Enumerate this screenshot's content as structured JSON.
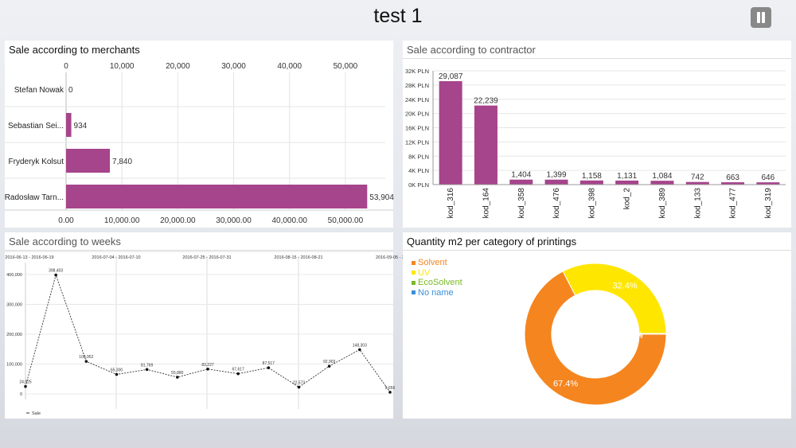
{
  "app": {
    "title": "test 1"
  },
  "merchants": {
    "title": "Sale according to merchants",
    "chart_data": {
      "type": "bar",
      "orientation": "horizontal",
      "categories": [
        "Stefan Nowak",
        "Sebastian Sei...",
        "Fryderyk Kolsut",
        "Radosław Tarn..."
      ],
      "values": [
        0,
        934,
        7840,
        53904
      ],
      "data_labels": [
        "0",
        "934",
        "7,840",
        "53,904"
      ],
      "xlim": [
        0,
        55000
      ],
      "top_ticks": [
        "0",
        "10,000",
        "20,000",
        "30,000",
        "40,000",
        "50,000"
      ],
      "bottom_ticks": [
        "0.00",
        "10,000.00",
        "20,000.00",
        "30,000.00",
        "40,000.00",
        "50,000.00"
      ],
      "tick_values": [
        0,
        10000,
        20000,
        30000,
        40000,
        50000
      ],
      "color": "#a6448c",
      "grid": true
    }
  },
  "contractor": {
    "title": "Sale according to contractor",
    "chart_data": {
      "type": "bar",
      "categories": [
        "kod_316",
        "kod_164",
        "kod_358",
        "kod_476",
        "kod_398",
        "kod_2",
        "kod_389",
        "kod_133",
        "kod_477",
        "kod_319"
      ],
      "values": [
        29087,
        22239,
        1404,
        1399,
        1158,
        1131,
        1084,
        742,
        663,
        646
      ],
      "data_labels": [
        "29,087",
        "22,239",
        "1,404",
        "1,399",
        "1,158",
        "1,131",
        "1,084",
        "742",
        "663",
        "646"
      ],
      "ylim": [
        0,
        32000
      ],
      "y_ticks": [
        "0K PLN",
        "4K PLN",
        "8K PLN",
        "12K PLN",
        "16K PLN",
        "20K PLN",
        "24K PLN",
        "28K PLN",
        "32K PLN"
      ],
      "y_tick_values": [
        0,
        4000,
        8000,
        12000,
        16000,
        20000,
        24000,
        28000,
        32000
      ],
      "color": "#a6448c",
      "grid": true
    }
  },
  "weeks": {
    "title": "Sale according to weeks",
    "chart_data": {
      "type": "line",
      "top_labels": [
        "2016-06-13 - 2016-06-19",
        "2016-07-04 - 2016-07-10",
        "2016-07-25 - 2016-07-31",
        "2016-08-15 - 2016-08-21",
        "2016-09-05 - 2"
      ],
      "values": [
        24925,
        398403,
        108952,
        65300,
        81769,
        55880,
        83227,
        67617,
        87517,
        22573,
        92903,
        148303,
        5656
      ],
      "data_labels": [
        "24,925",
        "398,403",
        "108,952",
        "65,300",
        "81,769",
        "55,880",
        "83,227",
        "67,617",
        "87,517",
        "22,573",
        "92,903",
        "148,303",
        "5,656"
      ],
      "ylim": [
        0,
        420000
      ],
      "y_ticks": [
        "0",
        "100,000",
        "200,000",
        "300,000",
        "400,000"
      ],
      "y_tick_values": [
        0,
        100000,
        200000,
        300000,
        400000
      ],
      "legend": [
        "Sale"
      ],
      "line_style": "dashed",
      "color": "#333333"
    }
  },
  "printings": {
    "title": "Quantity m2 per category of printings",
    "chart_data": {
      "type": "pie",
      "donut": true,
      "labels": [
        "Solvent",
        "UV",
        "EcoSolvent",
        "No name"
      ],
      "values": [
        67.4,
        32.4,
        0.1,
        0.1
      ],
      "slice_labels": [
        "67.4%",
        "32.4%",
        "0%",
        "0%"
      ],
      "colors": [
        "#f5851f",
        "#ffe600",
        "#7ab929",
        "#3a8fd6"
      ],
      "legend_position": "top-left"
    }
  }
}
